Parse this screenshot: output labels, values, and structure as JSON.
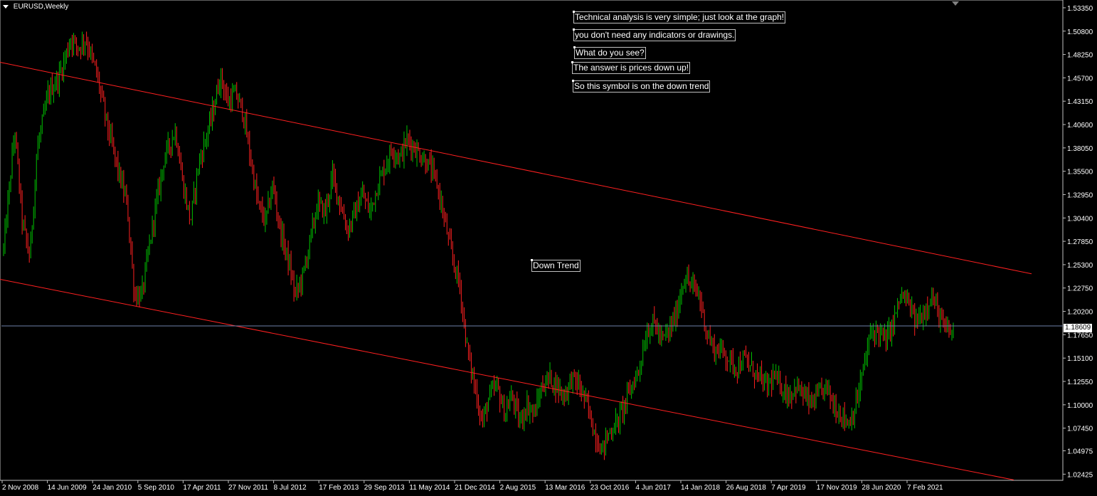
{
  "title": "EURUSD,Weekly",
  "labels": {
    "line1": "Technical analysis is very simple; just look at the graph!",
    "line2": "you don't need any indicators or drawings.",
    "line3": "What do you see?",
    "line4": "The answer is prices down up!",
    "line5": "So this symbol is on the down trend",
    "trend": "Down Trend"
  },
  "colors": {
    "background": "#000000",
    "bull": "#00c000",
    "bear": "#ff2020",
    "channel": "#ff2020",
    "price_line": "#6e7fa8",
    "axis": "#c0c0c0",
    "text": "#ffffff"
  },
  "chart_data": {
    "type": "candlestick",
    "symbol": "EURUSD",
    "timeframe": "Weekly",
    "current_price": "1.18609",
    "y_ticks": [
      "1.53350",
      "1.50800",
      "1.48250",
      "1.45700",
      "1.43150",
      "1.40600",
      "1.38050",
      "1.35500",
      "1.32950",
      "1.30400",
      "1.27850",
      "1.25300",
      "1.22750",
      "1.20200",
      "1.17650",
      "1.15100",
      "1.12550",
      "1.10000",
      "1.07450",
      "1.04975",
      "1.02425"
    ],
    "ylim": [
      1.0175,
      1.542
    ],
    "x_ticks": [
      "2 Nov 2008",
      "14 Jun 2009",
      "24 Jan 2010",
      "5 Sep 2010",
      "17 Apr 2011",
      "27 Nov 2011",
      "8 Jul 2012",
      "17 Feb 2013",
      "29 Sep 2013",
      "11 May 2014",
      "21 Dec 2014",
      "2 Aug 2015",
      "13 Mar 2016",
      "23 Oct 2016",
      "4 Jun 2017",
      "14 Jan 2018",
      "26 Aug 2018",
      "7 Apr 2019",
      "17 Nov 2019",
      "28 Jun 2020",
      "7 Feb 2021"
    ],
    "price_path": [
      [
        0,
        1.27
      ],
      [
        3,
        1.4
      ],
      [
        5,
        1.3
      ],
      [
        7,
        1.26
      ],
      [
        9,
        1.38
      ],
      [
        12,
        1.44
      ],
      [
        15,
        1.46
      ],
      [
        18,
        1.5
      ],
      [
        20,
        1.49
      ],
      [
        22,
        1.5
      ],
      [
        25,
        1.46
      ],
      [
        28,
        1.4
      ],
      [
        31,
        1.35
      ],
      [
        33,
        1.32
      ],
      [
        35,
        1.22
      ],
      [
        37,
        1.22
      ],
      [
        40,
        1.3
      ],
      [
        43,
        1.37
      ],
      [
        46,
        1.4
      ],
      [
        48,
        1.34
      ],
      [
        50,
        1.3
      ],
      [
        52,
        1.36
      ],
      [
        54,
        1.39
      ],
      [
        56,
        1.42
      ],
      [
        58,
        1.46
      ],
      [
        60,
        1.43
      ],
      [
        62,
        1.44
      ],
      [
        64,
        1.42
      ],
      [
        66,
        1.37
      ],
      [
        68,
        1.32
      ],
      [
        70,
        1.3
      ],
      [
        72,
        1.34
      ],
      [
        74,
        1.29
      ],
      [
        76,
        1.26
      ],
      [
        78,
        1.22
      ],
      [
        80,
        1.24
      ],
      [
        82,
        1.28
      ],
      [
        84,
        1.32
      ],
      [
        86,
        1.31
      ],
      [
        88,
        1.35
      ],
      [
        90,
        1.32
      ],
      [
        92,
        1.29
      ],
      [
        94,
        1.31
      ],
      [
        96,
        1.33
      ],
      [
        98,
        1.31
      ],
      [
        100,
        1.34
      ],
      [
        102,
        1.36
      ],
      [
        104,
        1.38
      ],
      [
        106,
        1.37
      ],
      [
        108,
        1.39
      ],
      [
        110,
        1.38
      ],
      [
        112,
        1.37
      ],
      [
        114,
        1.36
      ],
      [
        116,
        1.34
      ],
      [
        118,
        1.3
      ],
      [
        120,
        1.26
      ],
      [
        122,
        1.23
      ],
      [
        124,
        1.16
      ],
      [
        126,
        1.12
      ],
      [
        128,
        1.08
      ],
      [
        130,
        1.11
      ],
      [
        132,
        1.12
      ],
      [
        134,
        1.09
      ],
      [
        136,
        1.11
      ],
      [
        138,
        1.08
      ],
      [
        140,
        1.1
      ],
      [
        142,
        1.09
      ],
      [
        144,
        1.12
      ],
      [
        146,
        1.13
      ],
      [
        148,
        1.12
      ],
      [
        150,
        1.11
      ],
      [
        152,
        1.13
      ],
      [
        154,
        1.12
      ],
      [
        156,
        1.1
      ],
      [
        158,
        1.07
      ],
      [
        160,
        1.05
      ],
      [
        162,
        1.07
      ],
      [
        164,
        1.08
      ],
      [
        166,
        1.1
      ],
      [
        168,
        1.12
      ],
      [
        170,
        1.14
      ],
      [
        172,
        1.18
      ],
      [
        174,
        1.19
      ],
      [
        176,
        1.17
      ],
      [
        178,
        1.18
      ],
      [
        180,
        1.2
      ],
      [
        182,
        1.24
      ],
      [
        184,
        1.23
      ],
      [
        186,
        1.22
      ],
      [
        188,
        1.18
      ],
      [
        190,
        1.16
      ],
      [
        192,
        1.16
      ],
      [
        194,
        1.15
      ],
      [
        196,
        1.14
      ],
      [
        198,
        1.15
      ],
      [
        200,
        1.14
      ],
      [
        202,
        1.13
      ],
      [
        204,
        1.12
      ],
      [
        206,
        1.13
      ],
      [
        208,
        1.12
      ],
      [
        210,
        1.11
      ],
      [
        212,
        1.12
      ],
      [
        214,
        1.11
      ],
      [
        216,
        1.1
      ],
      [
        218,
        1.11
      ],
      [
        220,
        1.12
      ],
      [
        222,
        1.1
      ],
      [
        224,
        1.09
      ],
      [
        226,
        1.08
      ],
      [
        228,
        1.1
      ],
      [
        230,
        1.14
      ],
      [
        232,
        1.18
      ],
      [
        234,
        1.18
      ],
      [
        236,
        1.17
      ],
      [
        238,
        1.19
      ],
      [
        240,
        1.22
      ],
      [
        242,
        1.21
      ],
      [
        244,
        1.19
      ],
      [
        246,
        1.2
      ],
      [
        248,
        1.22
      ],
      [
        250,
        1.2
      ],
      [
        252,
        1.18
      ],
      [
        254,
        1.18
      ]
    ],
    "channel_lines": [
      {
        "name": "upper",
        "from": [
          0,
          1.474
        ],
        "to": [
          1450,
          1.243
        ]
      },
      {
        "name": "lower",
        "from": [
          0,
          1.237
        ],
        "to": [
          1425,
          1.018
        ]
      }
    ]
  }
}
